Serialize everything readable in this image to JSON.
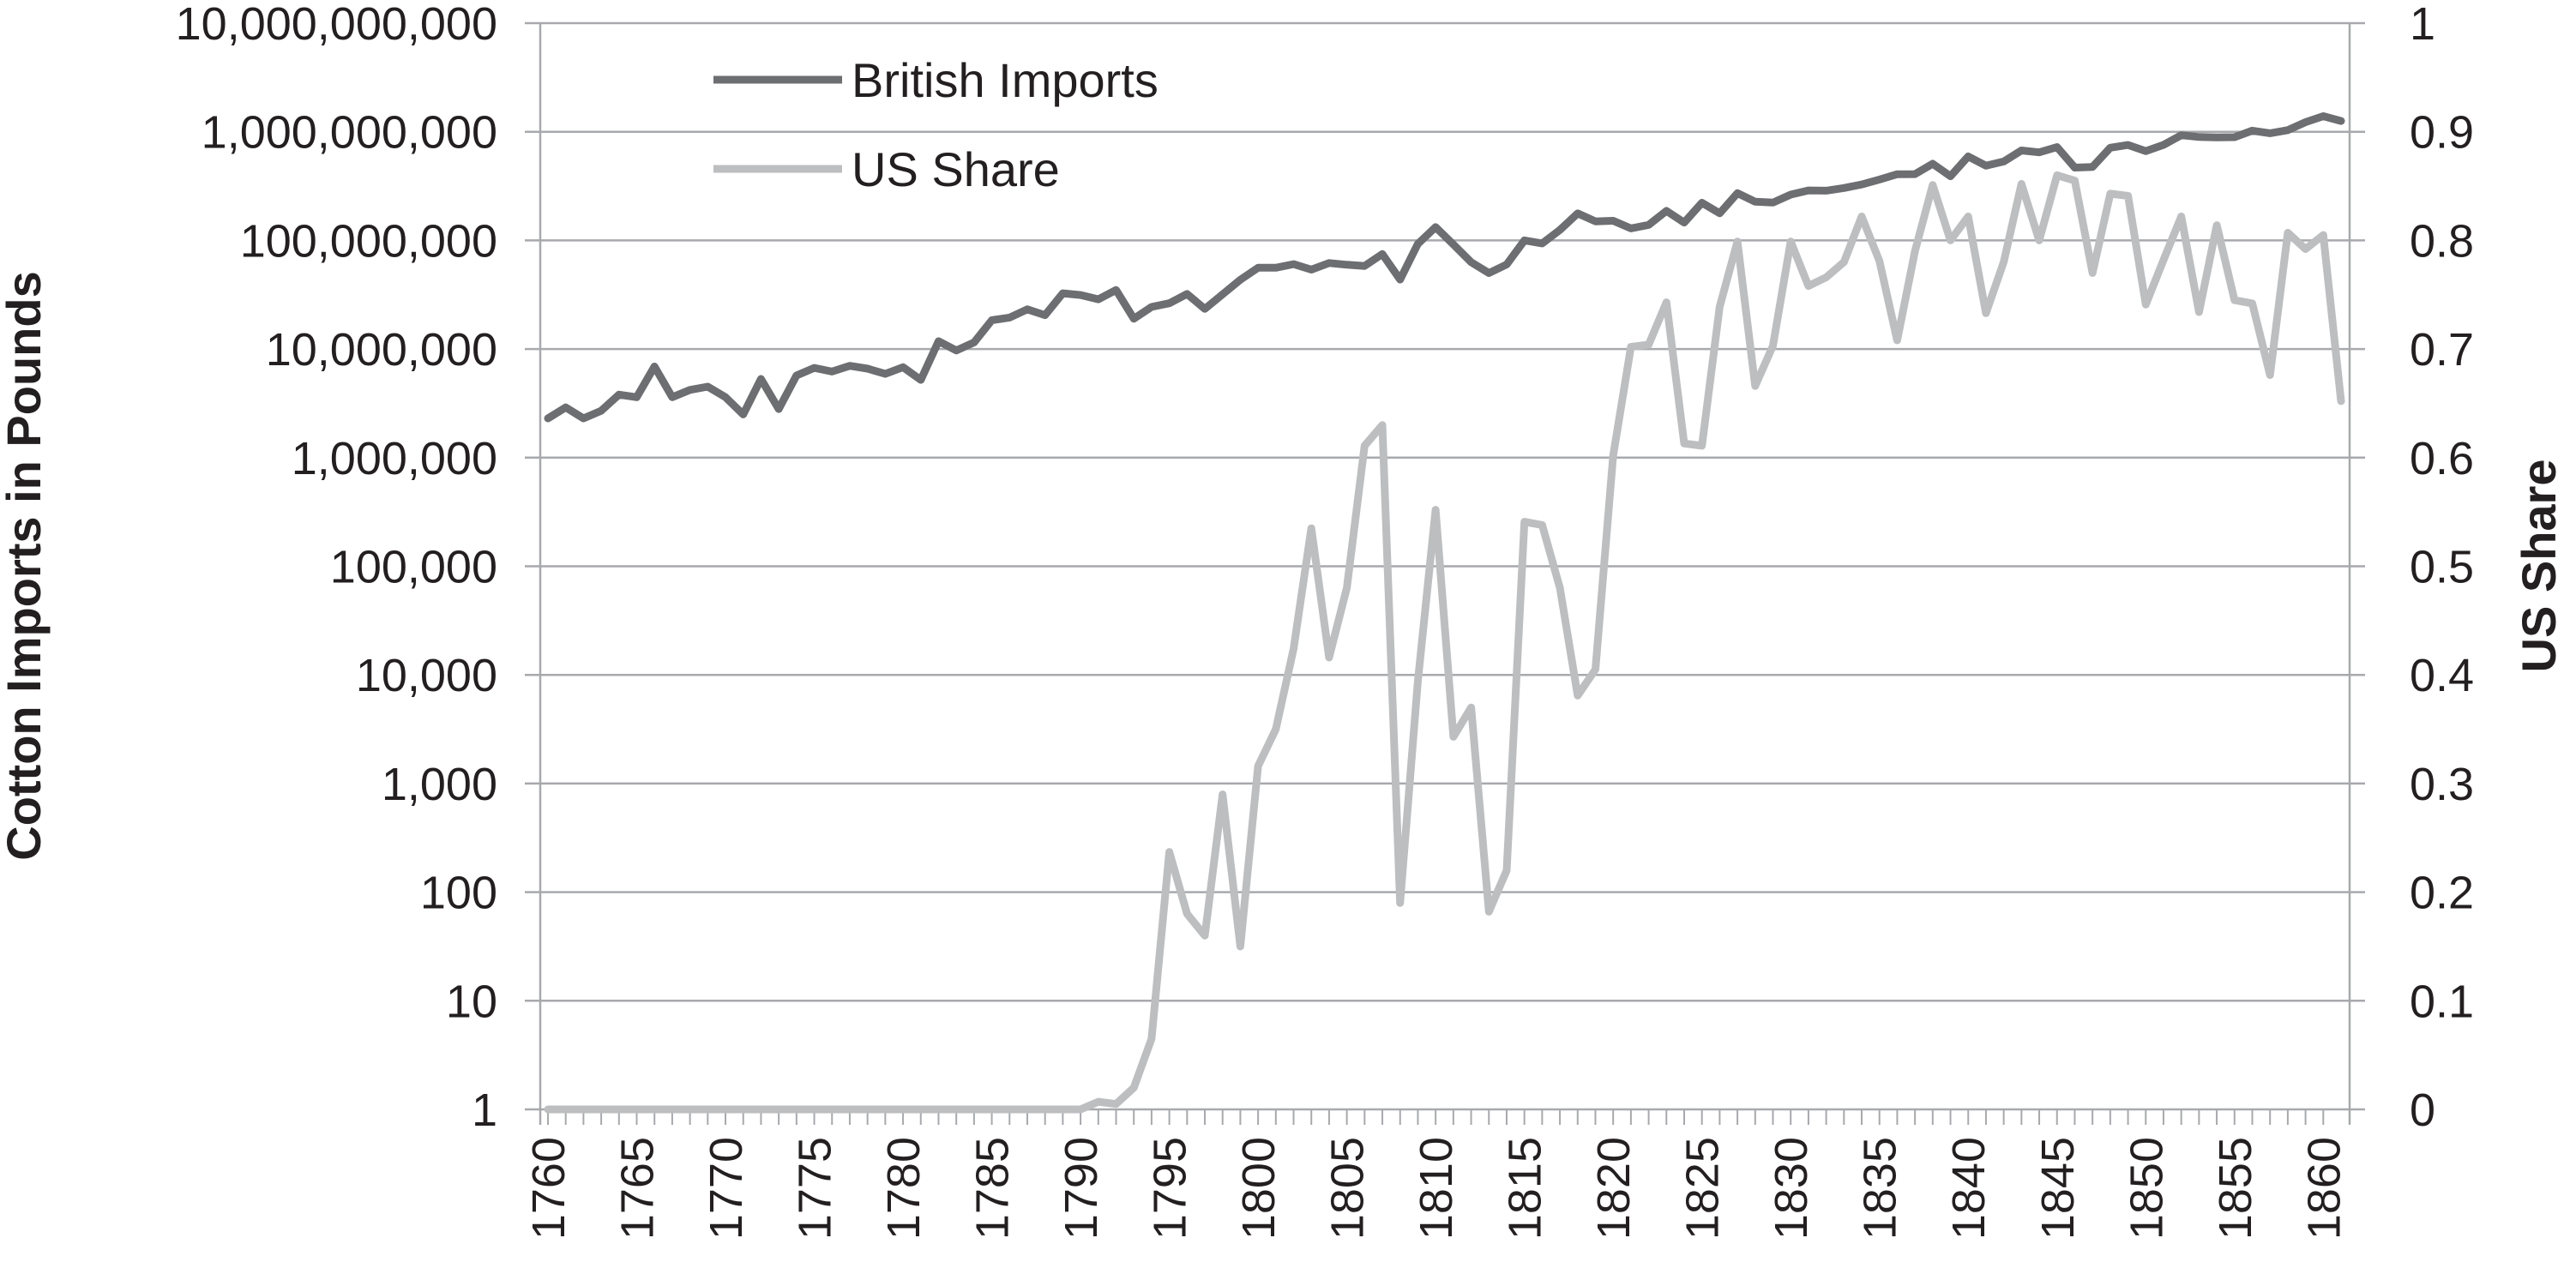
{
  "chart_data": {
    "type": "line",
    "title": "",
    "xlabel": "",
    "ylabel": "Cotton Imports in Pounds",
    "y2label": "US Share",
    "xlim": [
      1760,
      1861
    ],
    "ylim": [
      1,
      10000000000
    ],
    "y_scale": "log",
    "y2lim": [
      0,
      1
    ],
    "grid": true,
    "legend_position": "top-left",
    "x_ticks": [
      "1760",
      "1765",
      "1770",
      "1775",
      "1780",
      "1785",
      "1790",
      "1795",
      "1800",
      "1805",
      "1810",
      "1815",
      "1820",
      "1825",
      "1830",
      "1835",
      "1840",
      "1845",
      "1850",
      "1855",
      "1860"
    ],
    "y_ticks": [
      "1",
      "10",
      "100",
      "1,000",
      "10,000",
      "100,000",
      "1,000,000",
      "10,000,000",
      "100,000,000",
      "1,000,000,000",
      "10,000,000,000"
    ],
    "y2_ticks": [
      "0",
      "0.1",
      "0.2",
      "0.3",
      "0.4",
      "0.5",
      "0.6",
      "0.7",
      "0.8",
      "0.9",
      "1"
    ],
    "x": [
      1760,
      1761,
      1762,
      1763,
      1764,
      1765,
      1766,
      1767,
      1768,
      1769,
      1770,
      1771,
      1772,
      1773,
      1774,
      1775,
      1776,
      1777,
      1778,
      1779,
      1780,
      1781,
      1782,
      1783,
      1784,
      1785,
      1786,
      1787,
      1788,
      1789,
      1790,
      1791,
      1792,
      1793,
      1794,
      1795,
      1796,
      1797,
      1798,
      1799,
      1800,
      1801,
      1802,
      1803,
      1804,
      1805,
      1806,
      1807,
      1808,
      1809,
      1810,
      1811,
      1812,
      1813,
      1814,
      1815,
      1816,
      1817,
      1818,
      1819,
      1820,
      1821,
      1822,
      1823,
      1824,
      1825,
      1826,
      1827,
      1828,
      1829,
      1830,
      1831,
      1832,
      1833,
      1834,
      1835,
      1836,
      1837,
      1838,
      1839,
      1840,
      1841,
      1842,
      1843,
      1844,
      1845,
      1846,
      1847,
      1848,
      1849,
      1850,
      1851,
      1852,
      1853,
      1854,
      1855,
      1856,
      1857,
      1858,
      1859,
      1860,
      1861
    ],
    "series": [
      {
        "name": "British Imports",
        "axis": "left",
        "color": "#6d6e71",
        "values": [
          2300000,
          2900000,
          2300000,
          2700000,
          3800000,
          3600000,
          6900000,
          3600000,
          4200000,
          4500000,
          3600000,
          2500000,
          5300000,
          2800000,
          5700000,
          6700000,
          6200000,
          7000000,
          6600000,
          5900000,
          6800000,
          5200000,
          11800000,
          9700000,
          11500000,
          18400000,
          19500000,
          23200000,
          20500000,
          32600000,
          31400000,
          28700000,
          34900000,
          19000000,
          24400000,
          26400000,
          32100000,
          23400000,
          31900000,
          43400000,
          56000000,
          56000000,
          60500000,
          53800000,
          61900000,
          59700000,
          58200000,
          74900000,
          43600000,
          92800000,
          132500000,
          91600000,
          63000000,
          50000000,
          60000000,
          100000000,
          93900000,
          124900000,
          177300000,
          149700000,
          151700000,
          129000000,
          139000000,
          187000000,
          146000000,
          222000000,
          177600000,
          272000000,
          227000000,
          222800000,
          263900000,
          288700000,
          286800000,
          303700000,
          326900000,
          363700000,
          406900000,
          407300000,
          507900000,
          389400000,
          592500000,
          487900000,
          531800000,
          673200000,
          646100000,
          721900000,
          467900000,
          474700000,
          713000000,
          755500000,
          663600000,
          757400000,
          929800000,
          895300000,
          887300000,
          891800000,
          1023900000,
          969300000,
          1034300000,
          1225900000,
          1390900000,
          1256900000
        ]
      },
      {
        "name": "US Share",
        "axis": "right",
        "color": "#bcbec0",
        "values": [
          0,
          0,
          0,
          0,
          0,
          0,
          0,
          0,
          0,
          0,
          0,
          0,
          0,
          0,
          0,
          0,
          0,
          0,
          0,
          0,
          0,
          0,
          0,
          0,
          0,
          0,
          0,
          0,
          0,
          0,
          0,
          0.007,
          0.005,
          0.02,
          0.065,
          0.237,
          0.18,
          0.16,
          0.29,
          0.15,
          0.316,
          0.35,
          0.424,
          0.535,
          0.416,
          0.48,
          0.611,
          0.63,
          0.19,
          0.394,
          0.552,
          0.343,
          0.37,
          0.182,
          0.22,
          0.541,
          0.538,
          0.48,
          0.381,
          0.405,
          0.602,
          0.702,
          0.704,
          0.743,
          0.613,
          0.611,
          0.739,
          0.799,
          0.666,
          0.703,
          0.799,
          0.758,
          0.766,
          0.78,
          0.822,
          0.781,
          0.708,
          0.79,
          0.851,
          0.8,
          0.822,
          0.733,
          0.78,
          0.852,
          0.8,
          0.86,
          0.855,
          0.77,
          0.843,
          0.841,
          0.741,
          0.782,
          0.822,
          0.734,
          0.814,
          0.745,
          0.742,
          0.676,
          0.807,
          0.792,
          0.805,
          0.652
        ]
      }
    ]
  }
}
